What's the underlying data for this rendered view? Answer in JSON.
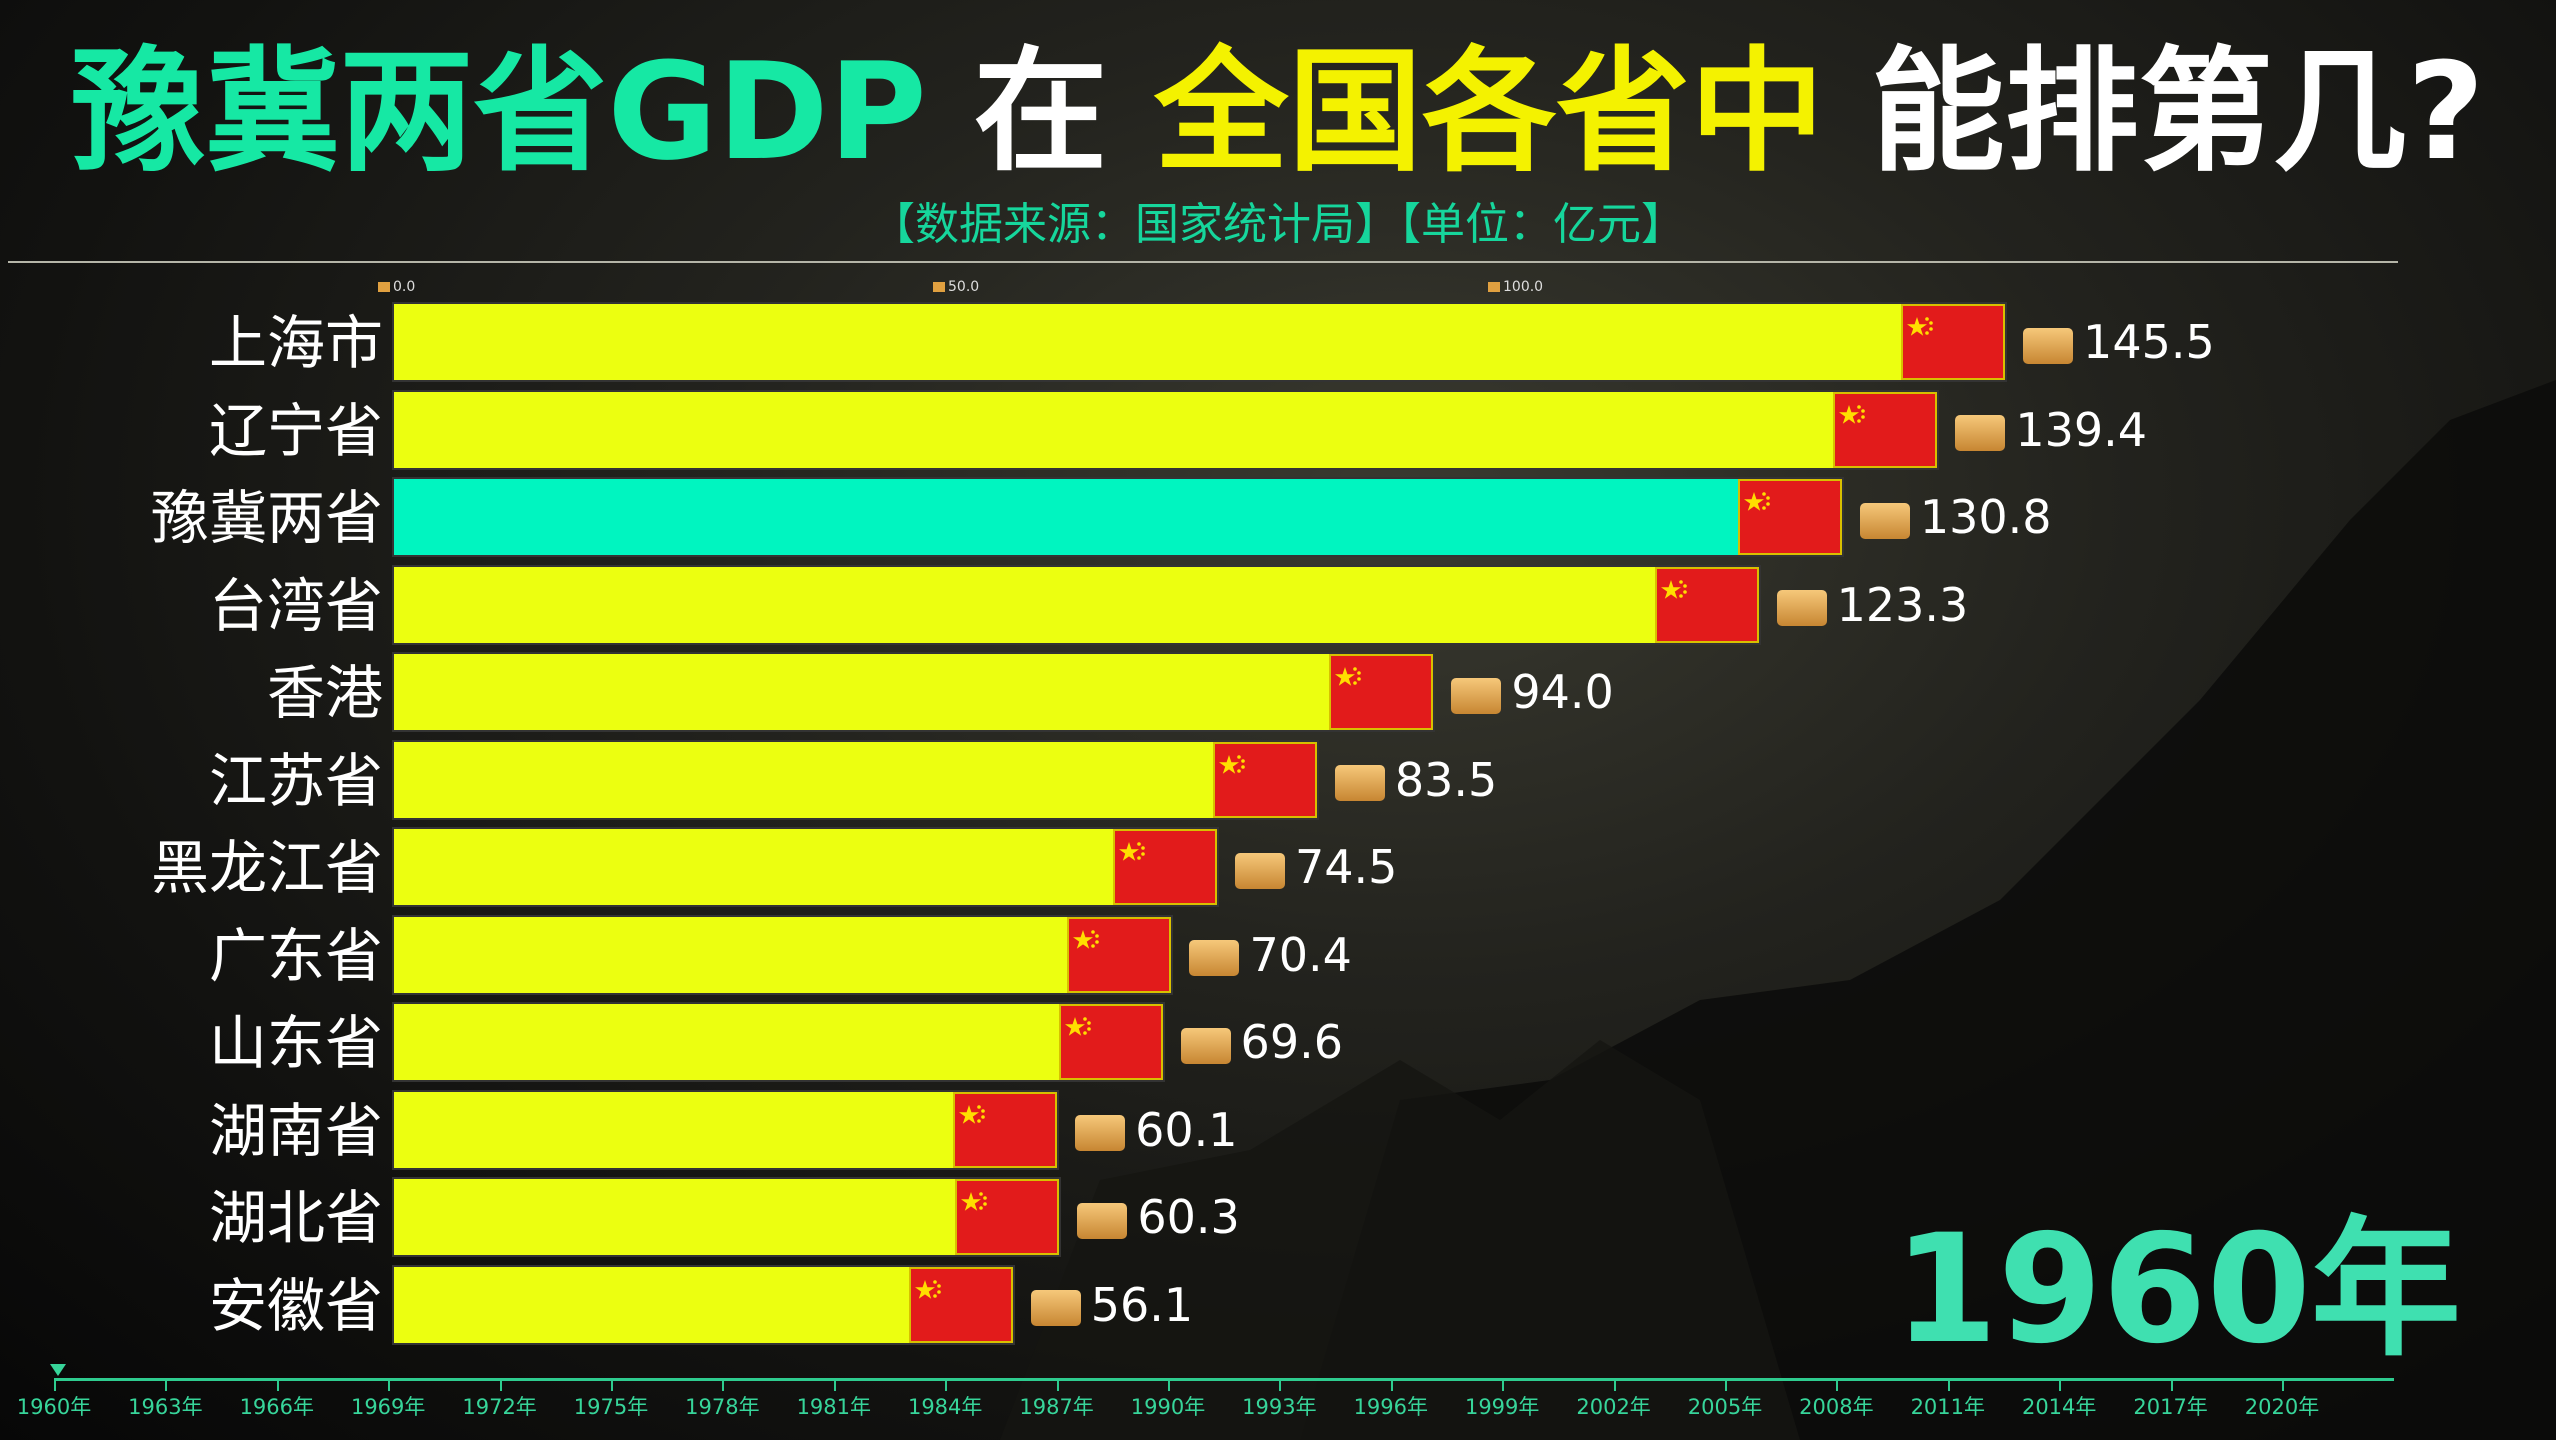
{
  "title": {
    "part1": "豫冀两省GDP",
    "part2": " 在 ",
    "part3": "全国各省",
    "part4": "中",
    "part5": " 能排第几?"
  },
  "subtitle": "【数据来源：国家统计局】【单位：亿元】",
  "year": "1960年",
  "colors": {
    "bar": "#ecff10",
    "highlight": "#00f5c0",
    "flag": "#e21b1b"
  },
  "chart_data": {
    "type": "bar",
    "orientation": "horizontal",
    "xlim": [
      0,
      150
    ],
    "x_ticks": [
      "0.0",
      "50.0",
      "100.0"
    ],
    "x_tick_values": [
      0,
      50,
      100
    ],
    "categories": [
      "上海市",
      "辽宁省",
      "豫冀两省",
      "台湾省",
      "香港",
      "江苏省",
      "黑龙江省",
      "广东省",
      "山东省",
      "湖南省",
      "湖北省",
      "安徽省"
    ],
    "values": [
      145.5,
      139.4,
      130.8,
      123.3,
      94.0,
      83.5,
      74.5,
      70.4,
      69.6,
      60.1,
      60.3,
      56.1
    ],
    "value_labels": [
      "145.5",
      "139.4",
      "130.8",
      "123.3",
      "94.0",
      "83.5",
      "74.5",
      "70.4",
      "69.6",
      "60.1",
      "60.3",
      "56.1"
    ],
    "highlight": "豫冀两省"
  },
  "timeline": [
    "1960年",
    "1963年",
    "1966年",
    "1969年",
    "1972年",
    "1975年",
    "1978年",
    "1981年",
    "1984年",
    "1987年",
    "1990年",
    "1993年",
    "1996年",
    "1999年",
    "2002年",
    "2005年",
    "2008年",
    "2011年",
    "2014年",
    "2017年",
    "2020年"
  ]
}
